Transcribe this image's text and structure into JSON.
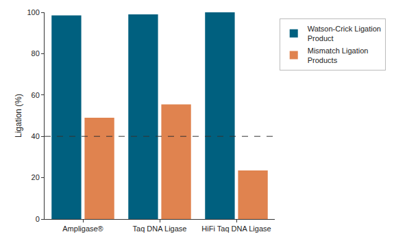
{
  "chart_data": {
    "type": "bar",
    "categories": [
      "Ampligase®",
      "Taq DNA Ligase",
      "HiFi Taq DNA Ligase"
    ],
    "series": [
      {
        "name": "Watson-Crick Ligation Product",
        "color": "#00607f",
        "values": [
          98.5,
          99,
          100
        ]
      },
      {
        "name": "Mismatch Ligation Products",
        "color": "#e0834f",
        "values": [
          49,
          55.5,
          23.5
        ]
      }
    ],
    "y_label": "Ligation (%)",
    "ylim": [
      0,
      100
    ],
    "yticks": [
      0,
      20,
      40,
      60,
      80,
      100
    ],
    "grid": false,
    "legend": "upper right",
    "reference_line": {
      "value": 40,
      "line_style": "dash"
    }
  }
}
